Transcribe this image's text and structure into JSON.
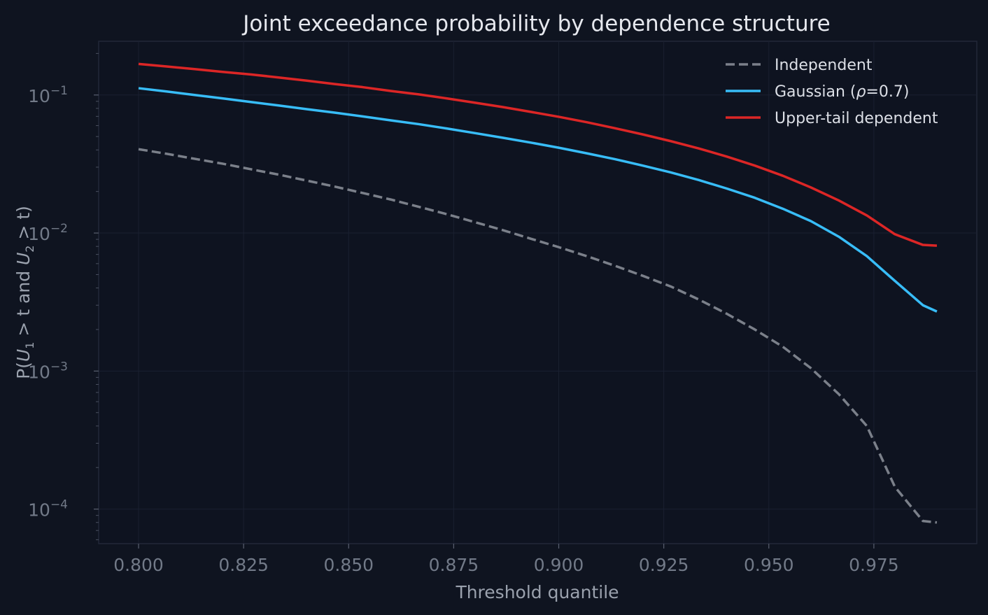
{
  "chart_data": {
    "type": "line",
    "title": "Joint exceedance probability by dependence structure",
    "xlabel": "Threshold quantile",
    "ylabel": {
      "prefix": "P(",
      "var1": "U",
      "sub1": "1",
      "mid": " > t and ",
      "var2": "U",
      "sub2": "2",
      "suffix": " > t)"
    },
    "y_scale": "log",
    "xlim": [
      0.7905,
      0.9995
    ],
    "ylim": [
      5.62e-05,
      0.245
    ],
    "x_ticks": [
      {
        "value": 0.8,
        "label": "0.800"
      },
      {
        "value": 0.825,
        "label": "0.825"
      },
      {
        "value": 0.85,
        "label": "0.850"
      },
      {
        "value": 0.875,
        "label": "0.875"
      },
      {
        "value": 0.9,
        "label": "0.900"
      },
      {
        "value": 0.925,
        "label": "0.925"
      },
      {
        "value": 0.95,
        "label": "0.950"
      },
      {
        "value": 0.975,
        "label": "0.975"
      }
    ],
    "y_ticks": [
      {
        "exp": -4,
        "base": "10",
        "sup": "−4"
      },
      {
        "exp": -3,
        "base": "10",
        "sup": "−3"
      },
      {
        "exp": -2,
        "base": "10",
        "sup": "−2"
      },
      {
        "exp": -1,
        "base": "10",
        "sup": "−1"
      }
    ],
    "grid": true,
    "legend_position": "top-right",
    "x": [
      0.8,
      0.80667,
      0.81333,
      0.82,
      0.82667,
      0.83333,
      0.84,
      0.84667,
      0.85333,
      0.86,
      0.86667,
      0.87333,
      0.88,
      0.88667,
      0.89333,
      0.9,
      0.90667,
      0.91333,
      0.92,
      0.92667,
      0.93333,
      0.94,
      0.94667,
      0.95333,
      0.96,
      0.96667,
      0.97333,
      0.98,
      0.98667,
      0.99
    ],
    "series": [
      {
        "name": "Independent",
        "color": "#7b808a",
        "dash": "dashed",
        "values": [
          0.0405,
          0.0375,
          0.0345,
          0.0318,
          0.029,
          0.0265,
          0.024,
          0.0217,
          0.0195,
          0.0175,
          0.0155,
          0.0137,
          0.012,
          0.0105,
          0.0091,
          0.0079,
          0.0068,
          0.0058,
          0.0049,
          0.0041,
          0.0033,
          0.0026,
          0.002,
          0.0015,
          0.00105,
          0.00068,
          0.0004,
          0.000145,
          8.2e-05,
          8e-05
        ]
      },
      {
        "name_parts": [
          "Gaussian (",
          "ρ",
          "=0.7)"
        ],
        "color": "#38bdf8",
        "dash": "solid",
        "values": [
          0.112,
          0.106,
          0.1,
          0.0945,
          0.089,
          0.084,
          0.079,
          0.0745,
          0.07,
          0.0655,
          0.0615,
          0.0572,
          0.053,
          0.049,
          0.0452,
          0.0415,
          0.0378,
          0.0343,
          0.0308,
          0.0275,
          0.0242,
          0.021,
          0.018,
          0.015,
          0.0122,
          0.0094,
          0.0068,
          0.0045,
          0.003,
          0.0027
        ]
      },
      {
        "name": "Upper-tail dependent",
        "color": "#dc2626",
        "dash": "solid",
        "values": [
          0.168,
          0.161,
          0.154,
          0.147,
          0.141,
          0.134,
          0.127,
          0.12,
          0.114,
          0.107,
          0.101,
          0.0945,
          0.088,
          0.0818,
          0.0755,
          0.0695,
          0.0635,
          0.0575,
          0.0518,
          0.0463,
          0.041,
          0.0358,
          0.0308,
          0.026,
          0.0214,
          0.0172,
          0.0134,
          0.0098,
          0.0082,
          0.0081
        ]
      }
    ]
  }
}
